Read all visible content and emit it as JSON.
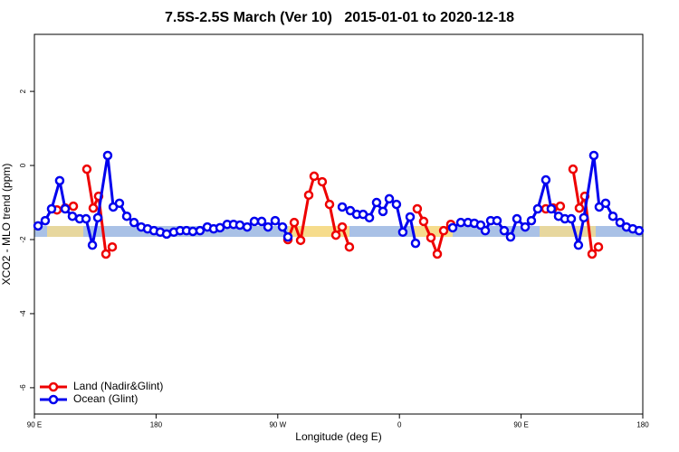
{
  "chart_data": {
    "type": "line",
    "title": "7.5S-2.5S March (Ver 10)   2015-01-01 to 2020-12-18",
    "x_label": "Longitude (deg E)",
    "y_label": "XCO2 - MLO trend (ppm)",
    "xlim": [
      90,
      540
    ],
    "ylim": [
      -6.71,
      3.54
    ],
    "xticks": [
      {
        "value": 90,
        "label": "90 E"
      },
      180,
      {
        "value": 270,
        "label": "90 W"
      },
      {
        "value": 360,
        "label": "0"
      },
      {
        "value": 450,
        "label": "90 E"
      },
      {
        "value": 540,
        "label": "180"
      }
    ],
    "yticks": [
      2,
      0,
      -2,
      -4,
      -6
    ],
    "legend": "bottom-left",
    "series": [
      {
        "name": "Land (Nadir&Glint)",
        "color": "#ee0000",
        "x": [
          106.7,
          112.8,
          118.8,
          null,
          128.8,
          133.5,
          137.5,
          142.9,
          147.6,
          null,
          277.5,
          282.2,
          286.9,
          292.9,
          296.9,
          302.9,
          308.3,
          313.0,
          317.7,
          323.0,
          null,
          373.2,
          377.9,
          383.3,
          388.0,
          392.7,
          398.0,
          null,
          468.3,
          473.7,
          479.0,
          null,
          488.4,
          493.1,
          497.1,
          502.5,
          507.2
        ],
        "values": [
          -1.2,
          -1.15,
          -1.1,
          null,
          -0.1,
          -1.15,
          -0.83,
          -2.39,
          -2.2,
          null,
          -2.0,
          -1.54,
          -2.02,
          -0.8,
          -0.29,
          -0.44,
          -1.05,
          -1.88,
          -1.66,
          -2.2,
          null,
          -1.17,
          -1.51,
          -1.95,
          -2.39,
          -1.76,
          -1.59,
          null,
          -1.17,
          -1.15,
          -1.1,
          null,
          -0.1,
          -1.15,
          -0.83,
          -2.39,
          -2.2
        ]
      },
      {
        "name": "Ocean (Glint)",
        "color": "#0000ee",
        "x": [
          92.7,
          98.0,
          102.7,
          108.7,
          112.8,
          118.1,
          123.5,
          128.2,
          132.9,
          136.9,
          144.2,
          148.3,
          152.9,
          158.3,
          163.7,
          169.0,
          173.7,
          178.4,
          183.1,
          187.8,
          193.1,
          197.8,
          202.5,
          207.2,
          212.5,
          217.9,
          222.6,
          227.3,
          232.6,
          237.3,
          242.0,
          247.4,
          252.7,
          258.1,
          262.8,
          268.1,
          273.5,
          277.5,
          null,
          317.7,
          323.7,
          328.4,
          333.1,
          337.8,
          343.1,
          347.8,
          352.5,
          357.8,
          362.5,
          367.9,
          371.9,
          null,
          399.4,
          405.4,
          410.7,
          415.4,
          420.1,
          423.5,
          427.5,
          432.2,
          437.5,
          442.2,
          446.9,
          453.0,
          457.6,
          462.3,
          468.3,
          472.3,
          477.7,
          482.4,
          487.1,
          492.4,
          496.4,
          503.8,
          507.8,
          512.5,
          517.9,
          523.2,
          527.9,
          532.6,
          537.3
        ],
        "values": [
          -1.63,
          -1.49,
          -1.17,
          -0.41,
          -1.17,
          -1.37,
          -1.44,
          -1.44,
          -2.15,
          -1.41,
          0.27,
          -1.12,
          -1.02,
          -1.37,
          -1.54,
          -1.66,
          -1.71,
          -1.76,
          -1.8,
          -1.85,
          -1.8,
          -1.76,
          -1.76,
          -1.78,
          -1.76,
          -1.66,
          -1.71,
          -1.68,
          -1.59,
          -1.59,
          -1.61,
          -1.66,
          -1.51,
          -1.51,
          -1.66,
          -1.49,
          -1.66,
          -1.93,
          null,
          -1.12,
          -1.22,
          -1.32,
          -1.32,
          -1.41,
          -1.0,
          -1.24,
          -0.9,
          -1.05,
          -1.8,
          -1.39,
          -2.1,
          null,
          -1.68,
          -1.54,
          -1.54,
          -1.56,
          -1.61,
          -1.76,
          -1.49,
          -1.49,
          -1.76,
          -1.93,
          -1.44,
          -1.66,
          -1.49,
          -1.17,
          -0.39,
          -1.17,
          -1.37,
          -1.44,
          -1.44,
          -2.15,
          -1.41,
          0.27,
          -1.12,
          -1.02,
          -1.37,
          -1.54,
          -1.66,
          -1.71,
          -1.76
        ]
      }
    ]
  }
}
